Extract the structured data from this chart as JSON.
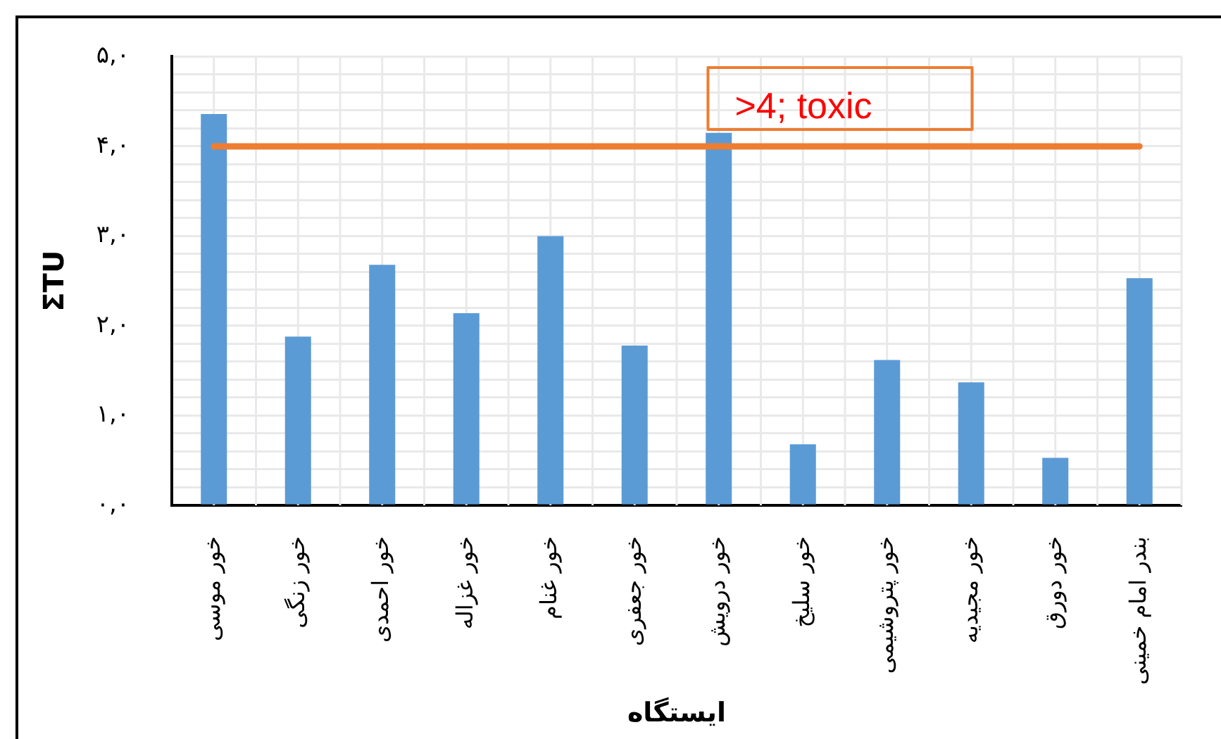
{
  "chart_data": {
    "type": "bar",
    "xlabel": "ایستگاه",
    "ylabel": "ΣTU",
    "categories": [
      "خور موسی",
      "خور زنگی",
      "خور احمدی",
      "خور غزاله",
      "خور غنام",
      "خور جعفری",
      "خور درویش",
      "خور سلیخ",
      "خور پتروشیمی",
      "خور مجیدیه",
      "خور دورق",
      "بندر امام خمینی"
    ],
    "values": [
      4.36,
      1.88,
      2.68,
      2.14,
      3.0,
      1.78,
      4.15,
      0.68,
      1.62,
      1.37,
      0.53,
      2.53
    ],
    "color": "#5b9bd5",
    "ylim": [
      0,
      5
    ],
    "yticks": [
      {
        "value": 0,
        "label": "۰,۰"
      },
      {
        "value": 0.2,
        "label": null
      },
      {
        "value": 0.4,
        "label": null
      },
      {
        "value": 0.6,
        "label": null
      },
      {
        "value": 0.8,
        "label": null
      },
      {
        "value": 1,
        "label": "۱,۰"
      },
      {
        "value": 1.2,
        "label": null
      },
      {
        "value": 1.4,
        "label": null
      },
      {
        "value": 1.6,
        "label": null
      },
      {
        "value": 1.8,
        "label": null
      },
      {
        "value": 2,
        "label": "۲,۰"
      },
      {
        "value": 2.2,
        "label": null
      },
      {
        "value": 2.4,
        "label": null
      },
      {
        "value": 2.6,
        "label": null
      },
      {
        "value": 2.8,
        "label": null
      },
      {
        "value": 3,
        "label": "۳,۰"
      },
      {
        "value": 3.2,
        "label": null
      },
      {
        "value": 3.4,
        "label": null
      },
      {
        "value": 3.6,
        "label": null
      },
      {
        "value": 3.8,
        "label": null
      },
      {
        "value": 4,
        "label": "۴,۰"
      },
      {
        "value": 4.2,
        "label": null
      },
      {
        "value": 4.4,
        "label": null
      },
      {
        "value": 4.6,
        "label": null
      },
      {
        "value": 4.8,
        "label": null
      },
      {
        "value": 5,
        "label": "۵,۰"
      }
    ],
    "grid": true,
    "ref_lines": [
      {
        "axis": "y",
        "value": 4,
        "label": ">4; toxic",
        "color": "#ed7d31"
      }
    ]
  }
}
